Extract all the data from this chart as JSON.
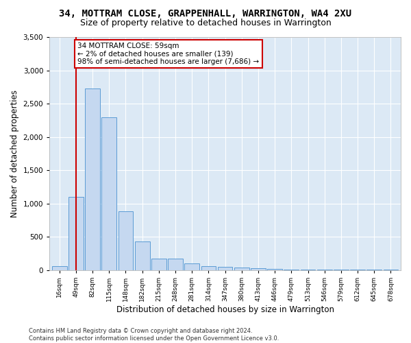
{
  "title1": "34, MOTTRAM CLOSE, GRAPPENHALL, WARRINGTON, WA4 2XU",
  "title2": "Size of property relative to detached houses in Warrington",
  "xlabel": "Distribution of detached houses by size in Warrington",
  "ylabel": "Number of detached properties",
  "categories": [
    "16sqm",
    "49sqm",
    "82sqm",
    "115sqm",
    "148sqm",
    "182sqm",
    "215sqm",
    "248sqm",
    "281sqm",
    "314sqm",
    "347sqm",
    "380sqm",
    "413sqm",
    "446sqm",
    "479sqm",
    "513sqm",
    "546sqm",
    "579sqm",
    "612sqm",
    "645sqm",
    "678sqm"
  ],
  "values": [
    55,
    1100,
    2730,
    2290,
    880,
    430,
    170,
    170,
    95,
    60,
    50,
    40,
    25,
    15,
    10,
    5,
    5,
    5,
    5,
    5,
    5
  ],
  "bar_color": "#c5d8f0",
  "bar_edge_color": "#5b9bd5",
  "vline_x": 1,
  "vline_color": "#cc0000",
  "annotation_text": "34 MOTTRAM CLOSE: 59sqm\n← 2% of detached houses are smaller (139)\n98% of semi-detached houses are larger (7,686) →",
  "annotation_box_color": "#cc0000",
  "ylim": [
    0,
    3500
  ],
  "yticks": [
    0,
    500,
    1000,
    1500,
    2000,
    2500,
    3000,
    3500
  ],
  "bg_color": "#dce9f5",
  "footer": "Contains HM Land Registry data © Crown copyright and database right 2024.\nContains public sector information licensed under the Open Government Licence v3.0.",
  "title1_fontsize": 10,
  "title2_fontsize": 9,
  "xlabel_fontsize": 8.5,
  "ylabel_fontsize": 8.5,
  "annotation_fontsize": 7.5,
  "footer_fontsize": 6
}
